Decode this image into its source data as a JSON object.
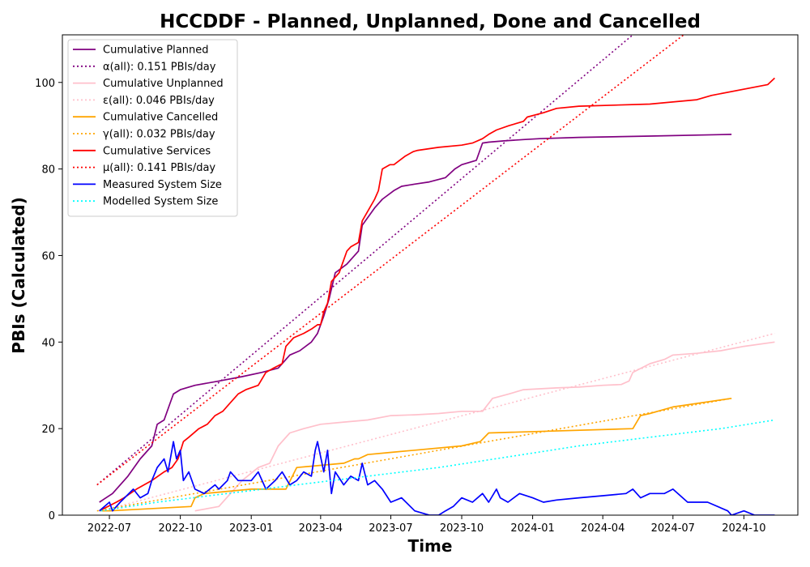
{
  "chart_data": {
    "type": "line",
    "title": "HCCDDF - Planned, Unplanned, Done  and Cancelled",
    "xlabel": "Time",
    "ylabel": "PBIs (Calculated)",
    "xlim": [
      "2022-05-01",
      "2024-12-10"
    ],
    "ylim": [
      0,
      111
    ],
    "x_ticks": [
      "2022-07",
      "2022-10",
      "2023-01",
      "2023-04",
      "2023-07",
      "2023-10",
      "2024-01",
      "2024-04",
      "2024-07",
      "2024-10"
    ],
    "y_ticks": [
      0,
      20,
      40,
      60,
      80,
      100
    ],
    "grid": false,
    "legend_position": "top-left",
    "series": [
      {
        "name": "Cumulative Planned",
        "color": "#800080",
        "dash": "solid",
        "x": [
          "2022-06-18",
          "2022-07-05",
          "2022-07-25",
          "2022-08-10",
          "2022-08-25",
          "2022-09-01",
          "2022-09-10",
          "2022-09-18",
          "2022-09-22",
          "2022-10-01",
          "2022-10-20",
          "2022-11-20",
          "2022-12-20",
          "2023-01-15",
          "2023-02-05",
          "2023-02-10",
          "2023-02-20",
          "2023-03-05",
          "2023-03-20",
          "2023-03-28",
          "2023-04-05",
          "2023-04-12",
          "2023-04-20",
          "2023-05-05",
          "2023-05-20",
          "2023-05-25",
          "2023-06-10",
          "2023-06-20",
          "2023-07-05",
          "2023-07-15",
          "2023-08-01",
          "2023-08-20",
          "2023-09-10",
          "2023-09-22",
          "2023-10-01",
          "2023-10-20",
          "2023-10-28",
          "2023-11-05",
          "2023-11-25",
          "2023-12-20",
          "2024-01-10",
          "2024-03-01",
          "2024-06-01",
          "2024-09-15"
        ],
        "y": [
          3,
          5,
          9,
          13,
          16,
          21,
          22,
          26,
          28,
          29,
          30,
          31,
          32,
          33,
          34,
          35,
          37,
          38,
          40,
          42,
          46,
          50,
          56,
          58,
          61,
          67,
          71,
          73,
          75,
          76,
          76.5,
          77,
          78,
          80,
          81,
          82,
          86,
          86.2,
          86.5,
          86.8,
          87,
          87.3,
          87.6,
          88
        ]
      },
      {
        "name": "α(all): 0.151 PBIs/day",
        "color": "#800080",
        "dash": "dotted",
        "x": [
          "2022-06-15",
          "2024-05-10"
        ],
        "y": [
          7,
          111
        ]
      },
      {
        "name": "Cumulative Unplanned",
        "color": "#ffc0cb",
        "dash": "solid",
        "x": [
          "2022-10-20",
          "2022-11-20",
          "2022-12-05",
          "2022-12-20",
          "2023-01-10",
          "2023-01-25",
          "2023-02-05",
          "2023-02-20",
          "2023-03-10",
          "2023-04-01",
          "2023-05-01",
          "2023-06-01",
          "2023-07-01",
          "2023-08-01",
          "2023-09-01",
          "2023-10-01",
          "2023-10-28",
          "2023-11-10",
          "2023-12-01",
          "2023-12-20",
          "2024-01-10",
          "2024-02-01",
          "2024-03-01",
          "2024-04-01",
          "2024-04-25",
          "2024-05-05",
          "2024-05-10",
          "2024-06-01",
          "2024-06-20",
          "2024-07-01",
          "2024-08-01",
          "2024-09-01",
          "2024-10-01",
          "2024-11-10"
        ],
        "y": [
          1,
          2,
          5,
          8,
          11,
          12,
          16,
          19,
          20,
          21,
          21.5,
          22,
          23,
          23.2,
          23.5,
          24,
          24,
          27,
          28,
          29,
          29.2,
          29.4,
          29.6,
          30,
          30.2,
          31,
          33,
          35,
          36,
          37,
          37.4,
          38,
          39,
          40
        ]
      },
      {
        "name": "ε(all): 0.046 PBIs/day",
        "color": "#ffc0cb",
        "dash": "dotted",
        "x": [
          "2022-06-20",
          "2024-11-10"
        ],
        "y": [
          1,
          42
        ]
      },
      {
        "name": "Cumulative Cancelled",
        "color": "#ffa500",
        "dash": "solid",
        "x": [
          "2022-06-20",
          "2022-07-01",
          "2022-10-15",
          "2022-10-20",
          "2022-11-01",
          "2023-01-01",
          "2023-02-15",
          "2023-03-01",
          "2023-05-01",
          "2023-05-15",
          "2023-05-20",
          "2023-06-01",
          "2023-07-01",
          "2023-10-01",
          "2023-10-25",
          "2023-11-05",
          "2024-05-10",
          "2024-05-20",
          "2024-06-01",
          "2024-07-01",
          "2024-09-15"
        ],
        "y": [
          1,
          1,
          2,
          4,
          5,
          6,
          6,
          11,
          12,
          13,
          13,
          14,
          14.5,
          16,
          17,
          19,
          20,
          23,
          23.5,
          25,
          27
        ]
      },
      {
        "name": "γ(all): 0.032 PBIs/day",
        "color": "#ffa500",
        "dash": "dotted",
        "x": [
          "2022-06-15",
          "2024-09-15"
        ],
        "y": [
          1,
          27
        ]
      },
      {
        "name": "Cumulative Services",
        "color": "#ff0000",
        "dash": "solid",
        "x": [
          "2022-06-18",
          "2022-07-10",
          "2022-07-20",
          "2022-08-05",
          "2022-08-25",
          "2022-09-10",
          "2022-09-20",
          "2022-09-28",
          "2022-10-05",
          "2022-10-12",
          "2022-10-25",
          "2022-11-05",
          "2022-11-15",
          "2022-11-25",
          "2022-12-05",
          "2022-12-15",
          "2022-12-25",
          "2023-01-10",
          "2023-01-20",
          "2023-01-30",
          "2023-02-10",
          "2023-02-15",
          "2023-02-25",
          "2023-03-10",
          "2023-03-20",
          "2023-03-28",
          "2023-04-01",
          "2023-04-05",
          "2023-04-10",
          "2023-04-15",
          "2023-04-25",
          "2023-05-01",
          "2023-05-05",
          "2023-05-10",
          "2023-05-20",
          "2023-05-25",
          "2023-06-10",
          "2023-06-15",
          "2023-06-20",
          "2023-06-30",
          "2023-07-05",
          "2023-07-20",
          "2023-07-30",
          "2023-08-05",
          "2023-09-01",
          "2023-10-01",
          "2023-10-15",
          "2023-10-28",
          "2023-11-05",
          "2023-11-15",
          "2023-12-01",
          "2023-12-20",
          "2023-12-25",
          "2024-01-15",
          "2024-02-01",
          "2024-03-01",
          "2024-06-01",
          "2024-08-01",
          "2024-08-20",
          "2024-11-01",
          "2024-11-10"
        ],
        "y": [
          1,
          3,
          4,
          6,
          8,
          10,
          11,
          13,
          17,
          18,
          20,
          21,
          23,
          24,
          26,
          28,
          29,
          30,
          33,
          34,
          35,
          39,
          41,
          42,
          43,
          44,
          44,
          47,
          49,
          54,
          56,
          59,
          61,
          62,
          63,
          68,
          73,
          75,
          80,
          81,
          81,
          83,
          84,
          84.3,
          85,
          85.5,
          86,
          87,
          88,
          89,
          90,
          91,
          92,
          93,
          94,
          94.5,
          95,
          96,
          97,
          99.5,
          101
        ]
      },
      {
        "name": "μ(all): 0.141 PBIs/day",
        "color": "#ff0000",
        "dash": "dotted",
        "x": [
          "2022-06-15",
          "2024-07-15"
        ],
        "y": [
          7,
          111
        ]
      },
      {
        "name": "Measured System Size",
        "color": "#0000ff",
        "dash": "solid",
        "x": [
          "2022-06-18",
          "2022-07-01",
          "2022-07-05",
          "2022-07-15",
          "2022-08-01",
          "2022-08-10",
          "2022-08-20",
          "2022-08-25",
          "2022-09-01",
          "2022-09-10",
          "2022-09-15",
          "2022-09-22",
          "2022-09-26",
          "2022-10-01",
          "2022-10-05",
          "2022-10-12",
          "2022-10-20",
          "2022-11-01",
          "2022-11-15",
          "2022-11-20",
          "2022-12-01",
          "2022-12-05",
          "2022-12-15",
          "2023-01-01",
          "2023-01-10",
          "2023-01-20",
          "2023-02-01",
          "2023-02-10",
          "2023-02-20",
          "2023-03-01",
          "2023-03-10",
          "2023-03-20",
          "2023-03-25",
          "2023-03-28",
          "2023-04-05",
          "2023-04-10",
          "2023-04-15",
          "2023-04-20",
          "2023-05-01",
          "2023-05-10",
          "2023-05-20",
          "2023-05-25",
          "2023-06-01",
          "2023-06-10",
          "2023-06-20",
          "2023-07-01",
          "2023-07-15",
          "2023-08-01",
          "2023-08-20",
          "2023-09-01",
          "2023-09-10",
          "2023-09-20",
          "2023-10-01",
          "2023-10-15",
          "2023-10-28",
          "2023-11-05",
          "2023-11-15",
          "2023-11-20",
          "2023-11-30",
          "2023-12-15",
          "2024-01-01",
          "2024-01-15",
          "2024-02-01",
          "2024-03-01",
          "2024-04-01",
          "2024-05-01",
          "2024-05-10",
          "2024-05-20",
          "2024-06-01",
          "2024-06-20",
          "2024-07-01",
          "2024-07-20",
          "2024-08-15",
          "2024-09-10",
          "2024-09-15",
          "2024-10-01",
          "2024-10-15",
          "2024-11-01",
          "2024-11-10"
        ],
        "y": [
          1,
          3,
          1,
          3,
          6,
          4,
          5,
          8,
          11,
          13,
          10,
          17,
          13,
          15,
          8,
          10,
          6,
          5,
          7,
          6,
          8,
          10,
          8,
          8,
          10,
          6,
          8,
          10,
          7,
          8,
          10,
          9,
          15,
          17,
          10,
          15,
          5,
          10,
          7,
          9,
          8,
          12,
          7,
          8,
          6,
          3,
          4,
          1,
          0,
          0,
          1,
          2,
          4,
          3,
          5,
          3,
          6,
          4,
          3,
          5,
          4,
          3,
          3.5,
          4,
          4.5,
          5,
          6,
          4,
          5,
          5,
          6,
          3,
          3,
          1,
          0,
          1,
          0,
          0,
          0
        ]
      },
      {
        "name": "Modelled System Size",
        "color": "#00ffff",
        "dash": "dotted",
        "x": [
          "2022-06-20",
          "2022-09-01",
          "2022-12-01",
          "2023-03-01",
          "2023-06-01",
          "2023-09-01",
          "2023-12-01",
          "2024-03-01",
          "2024-06-01",
          "2024-09-01",
          "2024-11-10"
        ],
        "y": [
          1,
          3,
          5,
          7,
          9,
          11,
          13.5,
          16,
          18,
          20,
          22
        ]
      }
    ]
  }
}
